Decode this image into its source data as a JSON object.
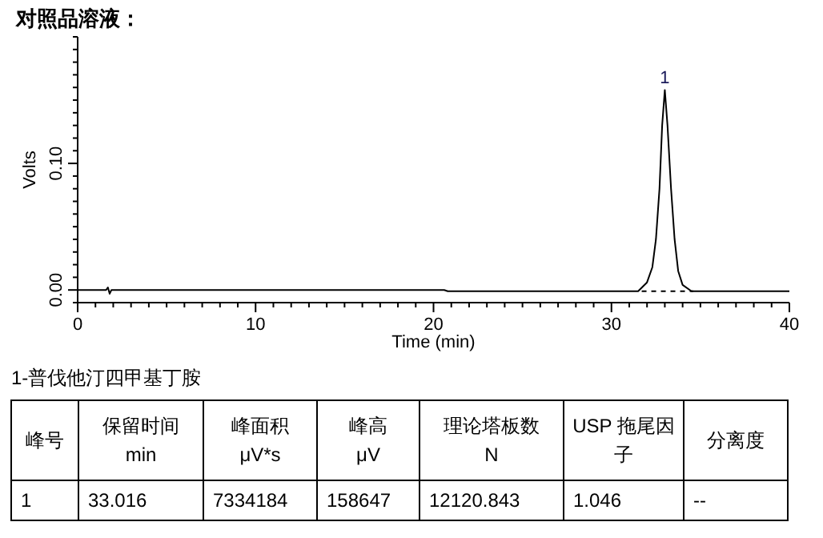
{
  "chart_data": {
    "type": "line",
    "title": "对照品溶液：",
    "xlabel": "Time (min)",
    "ylabel": "Volts",
    "grid": false,
    "marker": "none",
    "xlim": [
      0,
      40
    ],
    "ylim": [
      -0.01,
      0.2
    ],
    "xticks": [
      0,
      {
        "value": 1,
        "label": null
      },
      {
        "value": 2,
        "label": null
      },
      {
        "value": 3,
        "label": null
      },
      {
        "value": 4,
        "label": null
      },
      {
        "value": 5,
        "label": null
      },
      {
        "value": 6,
        "label": null
      },
      {
        "value": 7,
        "label": null
      },
      {
        "value": 8,
        "label": null
      },
      {
        "value": 9,
        "label": null
      },
      10,
      {
        "value": 11,
        "label": null
      },
      {
        "value": 12,
        "label": null
      },
      {
        "value": 13,
        "label": null
      },
      {
        "value": 14,
        "label": null
      },
      {
        "value": 15,
        "label": null
      },
      {
        "value": 16,
        "label": null
      },
      {
        "value": 17,
        "label": null
      },
      {
        "value": 18,
        "label": null
      },
      {
        "value": 19,
        "label": null
      },
      20,
      {
        "value": 21,
        "label": null
      },
      {
        "value": 22,
        "label": null
      },
      {
        "value": 23,
        "label": null
      },
      {
        "value": 24,
        "label": null
      },
      {
        "value": 25,
        "label": null
      },
      {
        "value": 26,
        "label": null
      },
      {
        "value": 27,
        "label": null
      },
      {
        "value": 28,
        "label": null
      },
      {
        "value": 29,
        "label": null
      },
      30,
      {
        "value": 31,
        "label": null
      },
      {
        "value": 32,
        "label": null
      },
      {
        "value": 33,
        "label": null
      },
      {
        "value": 34,
        "label": null
      },
      {
        "value": 35,
        "label": null
      },
      {
        "value": 36,
        "label": null
      },
      {
        "value": 37,
        "label": null
      },
      {
        "value": 38,
        "label": null
      },
      {
        "value": 39,
        "label": null
      },
      40
    ],
    "yticks": [
      {
        "value": -0.01,
        "label": null
      },
      {
        "value": 0,
        "label": "0.00"
      },
      {
        "value": 0.01,
        "label": null
      },
      {
        "value": 0.02,
        "label": null
      },
      {
        "value": 0.03,
        "label": null
      },
      {
        "value": 0.04,
        "label": null
      },
      {
        "value": 0.05,
        "label": null
      },
      {
        "value": 0.06,
        "label": null
      },
      {
        "value": 0.07,
        "label": null
      },
      {
        "value": 0.08,
        "label": null
      },
      {
        "value": 0.09,
        "label": null
      },
      {
        "value": 0.1,
        "label": "0.10"
      },
      {
        "value": 0.11,
        "label": null
      },
      {
        "value": 0.12,
        "label": null
      },
      {
        "value": 0.13,
        "label": null
      },
      {
        "value": 0.14,
        "label": null
      },
      {
        "value": 0.15,
        "label": null
      },
      {
        "value": 0.16,
        "label": null
      },
      {
        "value": 0.17,
        "label": null
      },
      {
        "value": 0.18,
        "label": null
      },
      {
        "value": 0.19,
        "label": null
      },
      {
        "value": 0.2,
        "label": null
      }
    ],
    "series": [
      {
        "color": "#000000",
        "line_style": "solid",
        "x": [
          0,
          1.6,
          1.7,
          1.8,
          1.9,
          2.0,
          20.6,
          20.8,
          31.5,
          32.0,
          32.3,
          32.5,
          32.7,
          32.85,
          33.0,
          33.15,
          33.35,
          33.55,
          33.75,
          34.0,
          34.5,
          40
        ],
        "values": [
          0,
          0,
          0.002,
          -0.003,
          0,
          0,
          0,
          -0.001,
          -0.001,
          0.006,
          0.018,
          0.04,
          0.08,
          0.13,
          0.158,
          0.13,
          0.08,
          0.04,
          0.015,
          0.004,
          -0.001,
          -0.001
        ]
      },
      {
        "color": "#000000",
        "line_style": "dashed",
        "x": [
          31.7,
          34.6
        ],
        "values": [
          -0.001,
          -0.001
        ]
      }
    ],
    "annotations": [
      {
        "text": "1",
        "x": 33.0,
        "y": 0.158
      },
      "1-普伐他汀四甲基丁胺",
      "峰号",
      "保留时间\nmin",
      "峰面积\nμV*s",
      "峰高\nμV",
      "理论塔板数\nN",
      "USP 拖尾因子",
      "分离度",
      "1",
      "33.016",
      "7334184",
      "158647",
      "12120.843",
      "1.046",
      "--"
    ]
  }
}
